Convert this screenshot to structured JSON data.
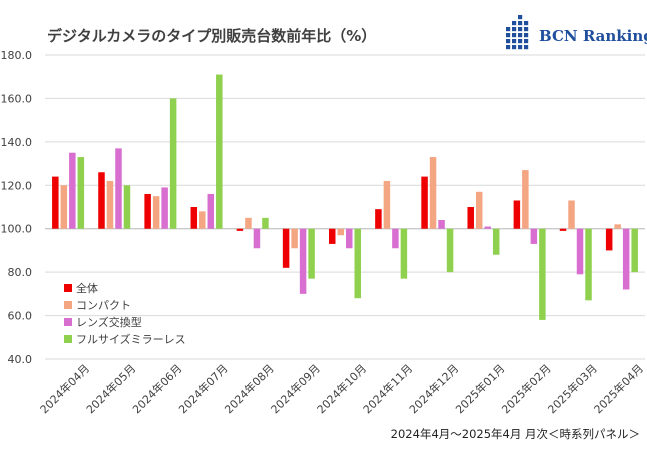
{
  "colors": {
    "全体": "#ee0000",
    "コンパクト": "#f4a582",
    "レンズ交換型": "#d86fd0",
    "フルサイズミラーレス": "#8fd14f",
    "logo": "#1f4e9c"
  },
  "logo": {
    "text": "BCN Ranking",
    "icon": "bcn-logo-dots-icon"
  },
  "chart_data": {
    "type": "bar",
    "title": "デジタルカメラのタイプ別販売台数前年比（%）",
    "subtitle": "2024年4月～2025年4月 月次＜時系列パネル＞",
    "xlabel": "",
    "ylabel": "",
    "ylim": [
      40,
      180
    ],
    "yticks": [
      40,
      60,
      80,
      100,
      120,
      140,
      160,
      180
    ],
    "ytick_labels": [
      "40.0",
      "60.0",
      "80.0",
      "100.0",
      "120.0",
      "140.0",
      "160.0",
      "180.0"
    ],
    "baseline": 100,
    "grid": true,
    "legend_position": "bottom-left",
    "categories": [
      "2024年04月",
      "2024年05月",
      "2024年06月",
      "2024年07月",
      "2024年08月",
      "2024年09月",
      "2024年10月",
      "2024年11月",
      "2024年12月",
      "2025年01月",
      "2025年02月",
      "2025年03月",
      "2025年04月"
    ],
    "series": [
      {
        "name": "全体",
        "values": [
          124,
          126,
          116,
          110,
          99,
          82,
          93,
          109,
          124,
          110,
          113,
          99,
          90
        ]
      },
      {
        "name": "コンパクト",
        "values": [
          120,
          122,
          115,
          108,
          105,
          91,
          97,
          122,
          133,
          117,
          127,
          113,
          102
        ]
      },
      {
        "name": "レンズ交換型",
        "values": [
          135,
          137,
          119,
          116,
          91,
          70,
          91,
          91,
          104,
          101,
          93,
          79,
          72
        ]
      },
      {
        "name": "フルサイズミラーレス",
        "values": [
          133,
          120,
          160,
          171,
          105,
          77,
          68,
          77,
          80,
          88,
          58,
          67,
          80
        ]
      }
    ]
  }
}
